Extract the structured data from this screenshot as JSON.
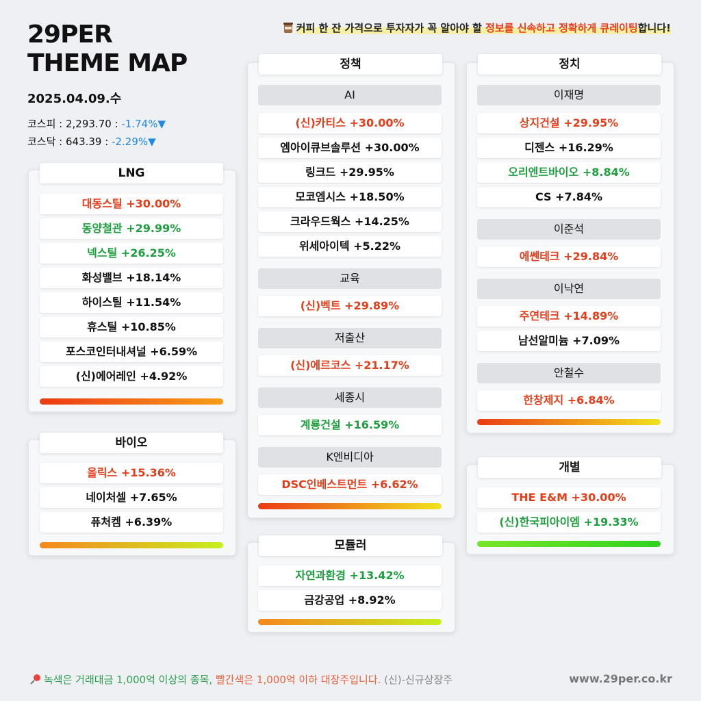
{
  "header": {
    "brand_line1": "29PER",
    "brand_line2": "THEME MAP",
    "date": "2025.04.09.수",
    "kospi_label": "코스피 : 2,293.70 : ",
    "kospi_change": "-1.74%▼",
    "kosdaq_label": "코스닥 : 643.39 : ",
    "kosdaq_change": "-2.29%▼",
    "tagline_icon": "coffee-cup-icon",
    "tagline_prefix": "커피 한 잔 가격으로 투자자가 꼭 알아야 할 ",
    "tagline_highlight": "정보를 신속하고 정확하게 큐레이팅",
    "tagline_suffix": "합니다!"
  },
  "colors": {
    "red": "#e53d1a",
    "green": "#1f9e3f",
    "index_down": "#1e88e5"
  },
  "panels": {
    "lng": {
      "title": "LNG",
      "items": [
        {
          "text": "대동스틸 +30.00%",
          "color": "red"
        },
        {
          "text": "동양철관 +29.99%",
          "color": "green"
        },
        {
          "text": "넥스틸 +26.25%",
          "color": "green"
        },
        {
          "text": "화성밸브 +18.14%",
          "color": "black"
        },
        {
          "text": "하이스틸 +11.54%",
          "color": "black"
        },
        {
          "text": "휴스틸 +10.85%",
          "color": "black"
        },
        {
          "text": "포스코인터내셔널 +6.59%",
          "color": "black"
        },
        {
          "text": "(신)에어레인 +4.92%",
          "color": "black"
        }
      ]
    },
    "bio": {
      "title": "바이오",
      "items": [
        {
          "text": "올릭스 +15.36%",
          "color": "red"
        },
        {
          "text": "네이처셀 +7.65%",
          "color": "black"
        },
        {
          "text": "퓨처켐 +6.39%",
          "color": "black"
        }
      ]
    },
    "policy": {
      "title": "정책",
      "groups": [
        {
          "name": "AI",
          "items": [
            {
              "text": "(신)카티스 +30.00%",
              "color": "red"
            },
            {
              "text": "엠아이큐브솔루션 +30.00%",
              "color": "black"
            },
            {
              "text": "링크드 +29.95%",
              "color": "black"
            },
            {
              "text": "모코엠시스 +18.50%",
              "color": "black"
            },
            {
              "text": "크라우드웍스 +14.25%",
              "color": "black"
            },
            {
              "text": "위세아이텍 +5.22%",
              "color": "black"
            }
          ]
        },
        {
          "name": "교육",
          "items": [
            {
              "text": "(신)벡트 +29.89%",
              "color": "red"
            }
          ]
        },
        {
          "name": "저출산",
          "items": [
            {
              "text": "(신)에르코스 +21.17%",
              "color": "red"
            }
          ]
        },
        {
          "name": "세종시",
          "items": [
            {
              "text": "계룡건설 +16.59%",
              "color": "green"
            }
          ]
        },
        {
          "name": "K엔비디아",
          "items": [
            {
              "text": "DSC인베스트먼트 +6.62%",
              "color": "red"
            }
          ]
        }
      ]
    },
    "modular": {
      "title": "모듈러",
      "items": [
        {
          "text": "자연과환경 +13.42%",
          "color": "green"
        },
        {
          "text": "금강공업 +8.92%",
          "color": "black"
        }
      ]
    },
    "politics": {
      "title": "정치",
      "groups": [
        {
          "name": "이재명",
          "items": [
            {
              "text": "상지건설 +29.95%",
              "color": "red"
            },
            {
              "text": "디젠스 +16.29%",
              "color": "black"
            },
            {
              "text": "오리엔트바이오 +8.84%",
              "color": "green"
            },
            {
              "text": "CS +7.84%",
              "color": "black"
            }
          ]
        },
        {
          "name": "이준석",
          "items": [
            {
              "text": "에쎈테크 +29.84%",
              "color": "red"
            }
          ]
        },
        {
          "name": "이낙연",
          "items": [
            {
              "text": "주연테크 +14.89%",
              "color": "red"
            },
            {
              "text": "남선알미늄 +7.09%",
              "color": "black"
            }
          ]
        },
        {
          "name": "안철수",
          "items": [
            {
              "text": "한창제지 +6.84%",
              "color": "red"
            }
          ]
        }
      ]
    },
    "individual": {
      "title": "개별",
      "items": [
        {
          "text": "THE E&M +30.00%",
          "color": "red"
        },
        {
          "text": "(신)한국피아이엠 +19.33%",
          "color": "green"
        }
      ]
    }
  },
  "footer": {
    "pin_icon": "pushpin-icon",
    "green_note": "녹색은 거래대금 1,000억 이상의 종목, ",
    "red_note": "빨간색은 1,000억 이하 대장주입니다.",
    "new_note": " (신)-신규상장주",
    "site": "www.29per.co.kr"
  }
}
